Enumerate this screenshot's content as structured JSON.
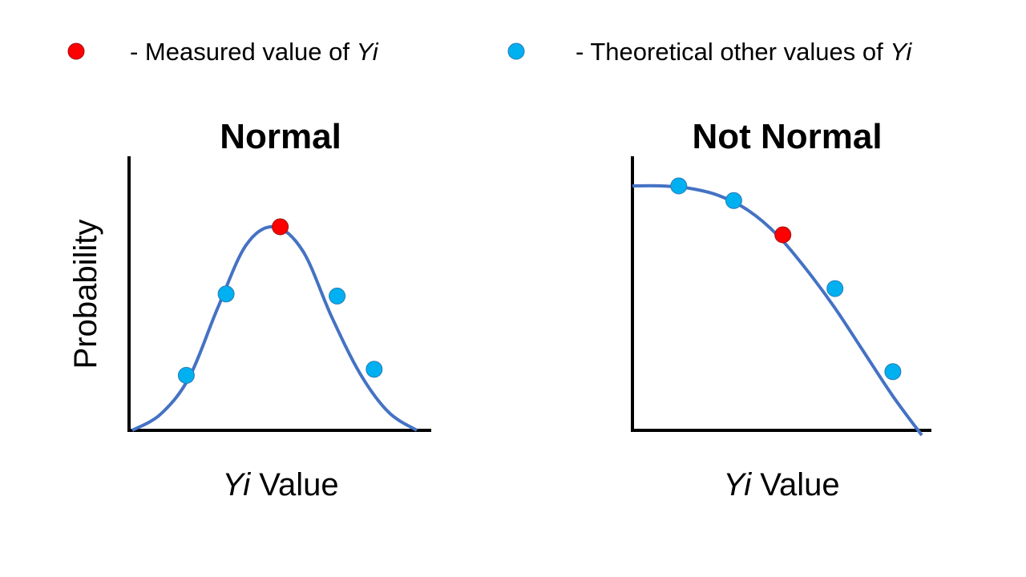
{
  "legend": {
    "measured": {
      "prefix": "- Measured value of ",
      "var": "Yi",
      "color": "#ff0000"
    },
    "theoretical": {
      "prefix": "- Theoretical other values of ",
      "var": "Yi",
      "color": "#00b0f0"
    }
  },
  "y_axis_label": "Probability",
  "curve_color": "#4472c4",
  "chart_data": [
    {
      "type": "line",
      "title": "Normal",
      "xlabel_var": "Yi",
      "xlabel_suffix": " Value",
      "ylabel": "Probability",
      "x": [
        0,
        1,
        2,
        3,
        4,
        5,
        6,
        7,
        8,
        9,
        10
      ],
      "y": [
        0,
        0.08,
        0.26,
        0.6,
        0.91,
        1.0,
        0.88,
        0.56,
        0.28,
        0.09,
        0
      ],
      "theoretical_points": [
        {
          "x": 1.9,
          "y": 0.27
        },
        {
          "x": 3.3,
          "y": 0.67
        },
        {
          "x": 7.2,
          "y": 0.66
        },
        {
          "x": 8.5,
          "y": 0.3
        }
      ],
      "measured_point": {
        "x": 5.2,
        "y": 1.0
      }
    },
    {
      "type": "line",
      "title": "Not Normal",
      "xlabel_var": "Yi",
      "xlabel_suffix": " Value",
      "ylabel": "",
      "x": [
        0,
        1,
        2,
        3,
        4,
        5,
        6,
        7,
        8,
        9,
        10
      ],
      "y": [
        1.0,
        1.0,
        0.99,
        0.96,
        0.9,
        0.8,
        0.66,
        0.5,
        0.32,
        0.14,
        -0.02
      ],
      "theoretical_points": [
        {
          "x": 1.6,
          "y": 1.0
        },
        {
          "x": 3.5,
          "y": 0.94
        },
        {
          "x": 7.0,
          "y": 0.58
        },
        {
          "x": 9.0,
          "y": 0.24
        }
      ],
      "measured_point": {
        "x": 5.2,
        "y": 0.8
      }
    }
  ]
}
